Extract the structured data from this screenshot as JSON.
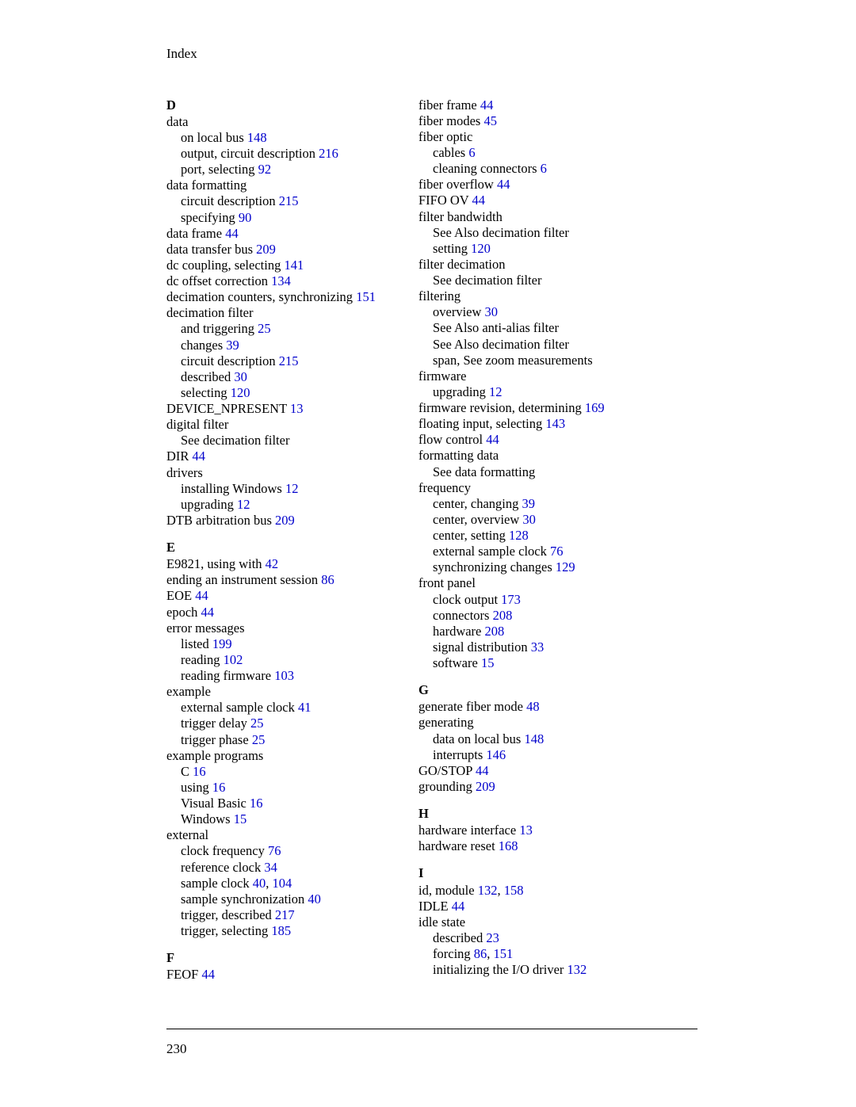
{
  "header": "Index",
  "pageNumber": "230",
  "left": [
    {
      "cls": "sect first",
      "runs": [
        {
          "t": "D"
        }
      ]
    },
    {
      "cls": "lvl1",
      "runs": [
        {
          "t": "data"
        }
      ]
    },
    {
      "cls": "lvl2",
      "runs": [
        {
          "t": "on local bus "
        },
        {
          "t": "148",
          "ref": true
        }
      ]
    },
    {
      "cls": "lvl2",
      "runs": [
        {
          "t": "output, circuit description "
        },
        {
          "t": "216",
          "ref": true
        }
      ]
    },
    {
      "cls": "lvl2",
      "runs": [
        {
          "t": "port, selecting "
        },
        {
          "t": "92",
          "ref": true
        }
      ]
    },
    {
      "cls": "lvl1",
      "runs": [
        {
          "t": "data formatting"
        }
      ]
    },
    {
      "cls": "lvl2",
      "runs": [
        {
          "t": "circuit description "
        },
        {
          "t": "215",
          "ref": true
        }
      ]
    },
    {
      "cls": "lvl2",
      "runs": [
        {
          "t": "specifying "
        },
        {
          "t": "90",
          "ref": true
        }
      ]
    },
    {
      "cls": "lvl1",
      "runs": [
        {
          "t": "data frame "
        },
        {
          "t": "44",
          "ref": true
        }
      ]
    },
    {
      "cls": "lvl1",
      "runs": [
        {
          "t": "data transfer bus "
        },
        {
          "t": "209",
          "ref": true
        }
      ]
    },
    {
      "cls": "lvl1",
      "runs": [
        {
          "t": "dc coupling, selecting "
        },
        {
          "t": "141",
          "ref": true
        }
      ]
    },
    {
      "cls": "lvl1",
      "runs": [
        {
          "t": "dc offset correction "
        },
        {
          "t": "134",
          "ref": true
        }
      ]
    },
    {
      "cls": "lvl1",
      "runs": [
        {
          "t": "decimation counters, synchronizing "
        },
        {
          "t": "151",
          "ref": true
        }
      ]
    },
    {
      "cls": "lvl1",
      "runs": [
        {
          "t": "decimation filter"
        }
      ]
    },
    {
      "cls": "lvl2",
      "runs": [
        {
          "t": "and triggering "
        },
        {
          "t": "25",
          "ref": true
        }
      ]
    },
    {
      "cls": "lvl2",
      "runs": [
        {
          "t": "changes "
        },
        {
          "t": "39",
          "ref": true
        }
      ]
    },
    {
      "cls": "lvl2",
      "runs": [
        {
          "t": "circuit description "
        },
        {
          "t": "215",
          "ref": true
        }
      ]
    },
    {
      "cls": "lvl2",
      "runs": [
        {
          "t": "described "
        },
        {
          "t": "30",
          "ref": true
        }
      ]
    },
    {
      "cls": "lvl2",
      "runs": [
        {
          "t": "selecting "
        },
        {
          "t": "120",
          "ref": true
        }
      ]
    },
    {
      "cls": "lvl1",
      "runs": [
        {
          "t": "DEVICE_NPRESENT "
        },
        {
          "t": "13",
          "ref": true
        }
      ]
    },
    {
      "cls": "lvl1",
      "runs": [
        {
          "t": "digital filter"
        }
      ]
    },
    {
      "cls": "lvl2",
      "runs": [
        {
          "t": "See decimation filter"
        }
      ]
    },
    {
      "cls": "lvl1",
      "runs": [
        {
          "t": "DIR "
        },
        {
          "t": "44",
          "ref": true
        }
      ]
    },
    {
      "cls": "lvl1",
      "runs": [
        {
          "t": "drivers"
        }
      ]
    },
    {
      "cls": "lvl2",
      "runs": [
        {
          "t": "installing Windows "
        },
        {
          "t": "12",
          "ref": true
        }
      ]
    },
    {
      "cls": "lvl2",
      "runs": [
        {
          "t": "upgrading "
        },
        {
          "t": "12",
          "ref": true
        }
      ]
    },
    {
      "cls": "lvl1",
      "runs": [
        {
          "t": "DTB arbitration bus "
        },
        {
          "t": "209",
          "ref": true
        }
      ]
    },
    {
      "cls": "sect",
      "runs": [
        {
          "t": "E"
        }
      ]
    },
    {
      "cls": "lvl1",
      "runs": [
        {
          "t": "E9821, using with "
        },
        {
          "t": "42",
          "ref": true
        }
      ]
    },
    {
      "cls": "lvl1",
      "runs": [
        {
          "t": "ending an instrument session "
        },
        {
          "t": "86",
          "ref": true
        }
      ]
    },
    {
      "cls": "lvl1",
      "runs": [
        {
          "t": "EOE "
        },
        {
          "t": "44",
          "ref": true
        }
      ]
    },
    {
      "cls": "lvl1",
      "runs": [
        {
          "t": "epoch "
        },
        {
          "t": "44",
          "ref": true
        }
      ]
    },
    {
      "cls": "lvl1",
      "runs": [
        {
          "t": "error messages"
        }
      ]
    },
    {
      "cls": "lvl2",
      "runs": [
        {
          "t": "listed "
        },
        {
          "t": "199",
          "ref": true
        }
      ]
    },
    {
      "cls": "lvl2",
      "runs": [
        {
          "t": "reading "
        },
        {
          "t": "102",
          "ref": true
        }
      ]
    },
    {
      "cls": "lvl2",
      "runs": [
        {
          "t": "reading firmware "
        },
        {
          "t": "103",
          "ref": true
        }
      ]
    },
    {
      "cls": "lvl1",
      "runs": [
        {
          "t": "example"
        }
      ]
    },
    {
      "cls": "lvl2",
      "runs": [
        {
          "t": "external sample clock "
        },
        {
          "t": "41",
          "ref": true
        }
      ]
    },
    {
      "cls": "lvl2",
      "runs": [
        {
          "t": "trigger delay "
        },
        {
          "t": "25",
          "ref": true
        }
      ]
    },
    {
      "cls": "lvl2",
      "runs": [
        {
          "t": "trigger phase "
        },
        {
          "t": "25",
          "ref": true
        }
      ]
    },
    {
      "cls": "lvl1",
      "runs": [
        {
          "t": "example programs"
        }
      ]
    },
    {
      "cls": "lvl2",
      "runs": [
        {
          "t": "C "
        },
        {
          "t": "16",
          "ref": true
        }
      ]
    },
    {
      "cls": "lvl2",
      "runs": [
        {
          "t": "using "
        },
        {
          "t": "16",
          "ref": true
        }
      ]
    },
    {
      "cls": "lvl2",
      "runs": [
        {
          "t": "Visual Basic "
        },
        {
          "t": "16",
          "ref": true
        }
      ]
    },
    {
      "cls": "lvl2",
      "runs": [
        {
          "t": "Windows "
        },
        {
          "t": "15",
          "ref": true
        }
      ]
    },
    {
      "cls": "lvl1",
      "runs": [
        {
          "t": "external"
        }
      ]
    },
    {
      "cls": "lvl2",
      "runs": [
        {
          "t": "clock frequency "
        },
        {
          "t": "76",
          "ref": true
        }
      ]
    },
    {
      "cls": "lvl2",
      "runs": [
        {
          "t": "reference clock "
        },
        {
          "t": "34",
          "ref": true
        }
      ]
    },
    {
      "cls": "lvl2",
      "runs": [
        {
          "t": "sample clock "
        },
        {
          "t": "40",
          "ref": true
        },
        {
          "t": ", "
        },
        {
          "t": "104",
          "ref": true
        }
      ]
    },
    {
      "cls": "lvl2",
      "runs": [
        {
          "t": "sample synchronization "
        },
        {
          "t": "40",
          "ref": true
        }
      ]
    },
    {
      "cls": "lvl2",
      "runs": [
        {
          "t": "trigger, described "
        },
        {
          "t": "217",
          "ref": true
        }
      ]
    },
    {
      "cls": "lvl2",
      "runs": [
        {
          "t": "trigger, selecting "
        },
        {
          "t": "185",
          "ref": true
        }
      ]
    },
    {
      "cls": "sect",
      "runs": [
        {
          "t": "F"
        }
      ]
    },
    {
      "cls": "lvl1",
      "runs": [
        {
          "t": "FEOF "
        },
        {
          "t": "44",
          "ref": true
        }
      ]
    }
  ],
  "right": [
    {
      "cls": "lvl1",
      "runs": [
        {
          "t": "fiber frame "
        },
        {
          "t": "44",
          "ref": true
        }
      ]
    },
    {
      "cls": "lvl1",
      "runs": [
        {
          "t": "fiber modes "
        },
        {
          "t": "45",
          "ref": true
        }
      ]
    },
    {
      "cls": "lvl1",
      "runs": [
        {
          "t": "fiber optic"
        }
      ]
    },
    {
      "cls": "lvl2",
      "runs": [
        {
          "t": "cables "
        },
        {
          "t": "6",
          "ref": true
        }
      ]
    },
    {
      "cls": "lvl2",
      "runs": [
        {
          "t": "cleaning connectors "
        },
        {
          "t": "6",
          "ref": true
        }
      ]
    },
    {
      "cls": "lvl1",
      "runs": [
        {
          "t": "fiber overflow "
        },
        {
          "t": "44",
          "ref": true
        }
      ]
    },
    {
      "cls": "lvl1",
      "runs": [
        {
          "t": "FIFO OV "
        },
        {
          "t": "44",
          "ref": true
        }
      ]
    },
    {
      "cls": "lvl1",
      "runs": [
        {
          "t": "filter bandwidth"
        }
      ]
    },
    {
      "cls": "lvl2",
      "runs": [
        {
          "t": "See Also decimation filter"
        }
      ]
    },
    {
      "cls": "lvl2",
      "runs": [
        {
          "t": "setting "
        },
        {
          "t": "120",
          "ref": true
        }
      ]
    },
    {
      "cls": "lvl1",
      "runs": [
        {
          "t": "filter decimation"
        }
      ]
    },
    {
      "cls": "lvl2",
      "runs": [
        {
          "t": "See decimation filter"
        }
      ]
    },
    {
      "cls": "lvl1",
      "runs": [
        {
          "t": "filtering"
        }
      ]
    },
    {
      "cls": "lvl2",
      "runs": [
        {
          "t": "overview "
        },
        {
          "t": "30",
          "ref": true
        }
      ]
    },
    {
      "cls": "lvl2",
      "runs": [
        {
          "t": "See Also anti-alias filter"
        }
      ]
    },
    {
      "cls": "lvl2",
      "runs": [
        {
          "t": "See Also decimation filter"
        }
      ]
    },
    {
      "cls": "lvl2",
      "runs": [
        {
          "t": "span, See zoom measurements"
        }
      ]
    },
    {
      "cls": "lvl1",
      "runs": [
        {
          "t": "firmware"
        }
      ]
    },
    {
      "cls": "lvl2",
      "runs": [
        {
          "t": "upgrading "
        },
        {
          "t": "12",
          "ref": true
        }
      ]
    },
    {
      "cls": "lvl1",
      "runs": [
        {
          "t": "firmware revision, determining "
        },
        {
          "t": "169",
          "ref": true
        }
      ]
    },
    {
      "cls": "lvl1",
      "runs": [
        {
          "t": "floating input, selecting "
        },
        {
          "t": "143",
          "ref": true
        }
      ]
    },
    {
      "cls": "lvl1",
      "runs": [
        {
          "t": "flow control "
        },
        {
          "t": "44",
          "ref": true
        }
      ]
    },
    {
      "cls": "lvl1",
      "runs": [
        {
          "t": "formatting data"
        }
      ]
    },
    {
      "cls": "lvl2",
      "runs": [
        {
          "t": "See data formatting"
        }
      ]
    },
    {
      "cls": "lvl1",
      "runs": [
        {
          "t": "frequency"
        }
      ]
    },
    {
      "cls": "lvl2",
      "runs": [
        {
          "t": "center, changing "
        },
        {
          "t": "39",
          "ref": true
        }
      ]
    },
    {
      "cls": "lvl2",
      "runs": [
        {
          "t": "center, overview "
        },
        {
          "t": "30",
          "ref": true
        }
      ]
    },
    {
      "cls": "lvl2",
      "runs": [
        {
          "t": "center, setting "
        },
        {
          "t": "128",
          "ref": true
        }
      ]
    },
    {
      "cls": "lvl2",
      "runs": [
        {
          "t": "external sample clock "
        },
        {
          "t": "76",
          "ref": true
        }
      ]
    },
    {
      "cls": "lvl2",
      "runs": [
        {
          "t": "synchronizing changes "
        },
        {
          "t": "129",
          "ref": true
        }
      ]
    },
    {
      "cls": "lvl1",
      "runs": [
        {
          "t": "front panel"
        }
      ]
    },
    {
      "cls": "lvl2",
      "runs": [
        {
          "t": "clock output "
        },
        {
          "t": "173",
          "ref": true
        }
      ]
    },
    {
      "cls": "lvl2",
      "runs": [
        {
          "t": "connectors "
        },
        {
          "t": "208",
          "ref": true
        }
      ]
    },
    {
      "cls": "lvl2",
      "runs": [
        {
          "t": "hardware "
        },
        {
          "t": "208",
          "ref": true
        }
      ]
    },
    {
      "cls": "lvl2",
      "runs": [
        {
          "t": "signal distribution "
        },
        {
          "t": "33",
          "ref": true
        }
      ]
    },
    {
      "cls": "lvl2",
      "runs": [
        {
          "t": "software "
        },
        {
          "t": "15",
          "ref": true
        }
      ]
    },
    {
      "cls": "sect",
      "runs": [
        {
          "t": "G"
        }
      ]
    },
    {
      "cls": "lvl1",
      "runs": [
        {
          "t": "generate fiber mode "
        },
        {
          "t": "48",
          "ref": true
        }
      ]
    },
    {
      "cls": "lvl1",
      "runs": [
        {
          "t": "generating"
        }
      ]
    },
    {
      "cls": "lvl2",
      "runs": [
        {
          "t": "data on local bus "
        },
        {
          "t": "148",
          "ref": true
        }
      ]
    },
    {
      "cls": "lvl2",
      "runs": [
        {
          "t": "interrupts "
        },
        {
          "t": "146",
          "ref": true
        }
      ]
    },
    {
      "cls": "lvl1",
      "runs": [
        {
          "t": "GO/STOP "
        },
        {
          "t": "44",
          "ref": true
        }
      ]
    },
    {
      "cls": "lvl1",
      "runs": [
        {
          "t": "grounding "
        },
        {
          "t": "209",
          "ref": true
        }
      ]
    },
    {
      "cls": "sect",
      "runs": [
        {
          "t": "H"
        }
      ]
    },
    {
      "cls": "lvl1",
      "runs": [
        {
          "t": "hardware interface "
        },
        {
          "t": "13",
          "ref": true
        }
      ]
    },
    {
      "cls": "lvl1",
      "runs": [
        {
          "t": "hardware reset "
        },
        {
          "t": "168",
          "ref": true
        }
      ]
    },
    {
      "cls": "sect",
      "runs": [
        {
          "t": "I"
        }
      ]
    },
    {
      "cls": "lvl1",
      "runs": [
        {
          "t": "id, module "
        },
        {
          "t": "132",
          "ref": true
        },
        {
          "t": ", "
        },
        {
          "t": "158",
          "ref": true
        }
      ]
    },
    {
      "cls": "lvl1",
      "runs": [
        {
          "t": "IDLE "
        },
        {
          "t": "44",
          "ref": true
        }
      ]
    },
    {
      "cls": "lvl1",
      "runs": [
        {
          "t": "idle state"
        }
      ]
    },
    {
      "cls": "lvl2",
      "runs": [
        {
          "t": "described "
        },
        {
          "t": "23",
          "ref": true
        }
      ]
    },
    {
      "cls": "lvl2",
      "runs": [
        {
          "t": "forcing "
        },
        {
          "t": "86",
          "ref": true
        },
        {
          "t": ", "
        },
        {
          "t": "151",
          "ref": true
        }
      ]
    },
    {
      "cls": "lvl2",
      "runs": [
        {
          "t": "initializing the I/O driver "
        },
        {
          "t": "132",
          "ref": true
        }
      ]
    }
  ]
}
